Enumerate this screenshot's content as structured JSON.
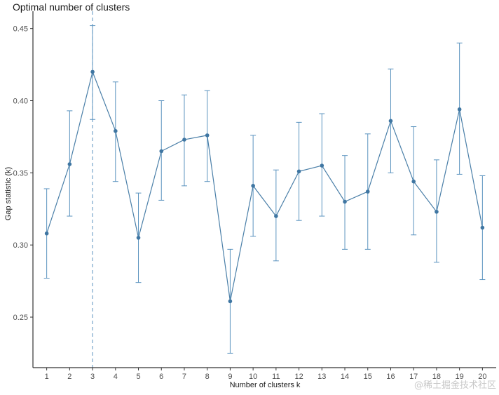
{
  "chart_data": {
    "type": "line",
    "title": "Optimal number of clusters",
    "xlabel": "Number of clusters k",
    "ylabel": "Gap statistic (k)",
    "x": [
      1,
      2,
      3,
      4,
      5,
      6,
      7,
      8,
      9,
      10,
      11,
      12,
      13,
      14,
      15,
      16,
      17,
      18,
      19,
      20
    ],
    "x_tick_labels": [
      "1",
      "2",
      "3",
      "4",
      "5",
      "6",
      "7",
      "8",
      "9",
      "10",
      "11",
      "12",
      "13",
      "14",
      "15",
      "16",
      "17",
      "18",
      "19",
      "20"
    ],
    "series": [
      {
        "values": [
          0.308,
          0.356,
          0.42,
          0.379,
          0.305,
          0.365,
          0.373,
          0.376,
          0.261,
          0.341,
          0.32,
          0.351,
          0.355,
          0.33,
          0.337,
          0.386,
          0.344,
          0.323,
          0.394,
          0.312
        ],
        "error_lower": [
          0.277,
          0.32,
          0.387,
          0.344,
          0.274,
          0.331,
          0.341,
          0.344,
          0.225,
          0.306,
          0.289,
          0.317,
          0.32,
          0.297,
          0.297,
          0.35,
          0.307,
          0.288,
          0.349,
          0.276
        ],
        "error_upper": [
          0.339,
          0.393,
          0.452,
          0.413,
          0.336,
          0.4,
          0.404,
          0.407,
          0.297,
          0.376,
          0.352,
          0.385,
          0.391,
          0.362,
          0.377,
          0.422,
          0.382,
          0.359,
          0.44,
          0.348
        ]
      }
    ],
    "ylim": [
      0.215,
      0.462
    ],
    "xlim": [
      0.4,
      20.6
    ],
    "y_ticks": [
      0.25,
      0.3,
      0.35,
      0.4,
      0.45
    ],
    "y_tick_labels": [
      "0.25",
      "0.30",
      "0.35",
      "0.40",
      "0.45"
    ],
    "optimal_k": 3,
    "grid": false,
    "colors": {
      "line": "#4a7fa8",
      "point": "#3f76a2",
      "error_bar": "#5b93bf",
      "vline": "#5b93bf",
      "axis": "#333333"
    }
  },
  "watermark": "@稀土掘金技术社区"
}
